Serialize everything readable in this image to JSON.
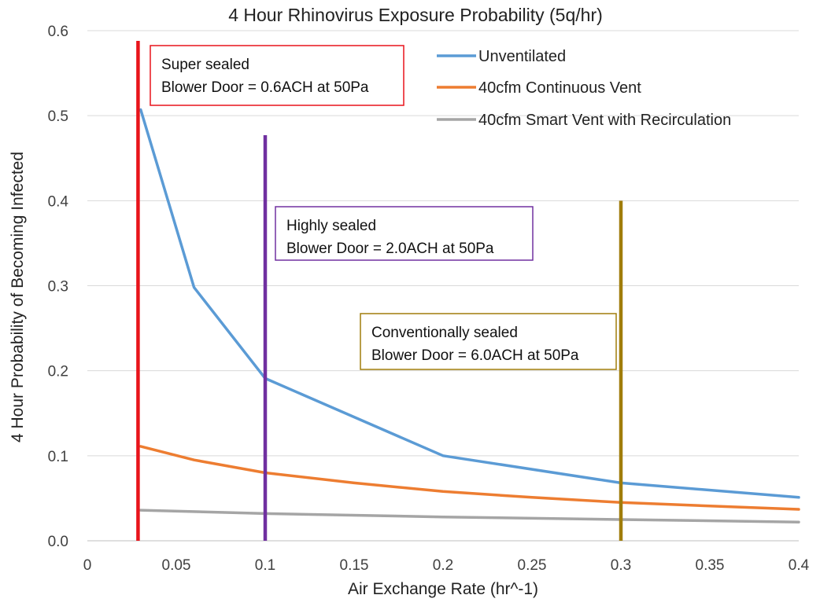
{
  "chart_data": {
    "type": "line",
    "title": "4 Hour Rhinovirus Exposure Probability (5q/hr)",
    "xlabel": "Air Exchange Rate (hr^-1)",
    "ylabel": "4 Hour Probability of Becoming Infected",
    "xlim": [
      0,
      0.4
    ],
    "ylim": [
      0,
      0.6
    ],
    "x_ticks": [
      0,
      0.05,
      0.1,
      0.15,
      0.2,
      0.25,
      0.3,
      0.35,
      0.4
    ],
    "x_tick_labels": [
      "0",
      "0.05",
      "0.1",
      "0.15",
      "0.2",
      "0.25",
      "0.3",
      "0.35",
      "0.4"
    ],
    "y_ticks": [
      0,
      0.1,
      0.2,
      0.3,
      0.4,
      0.5,
      0.6
    ],
    "y_tick_labels": [
      "0.0",
      "0.1",
      "0.2",
      "0.3",
      "0.4",
      "0.5",
      "0.6"
    ],
    "grid": "horizontal",
    "legend_position": "top-right",
    "series": [
      {
        "name": "Unventilated",
        "color": "#5b9bd5",
        "x": [
          0.03,
          0.06,
          0.1,
          0.2,
          0.3,
          0.4
        ],
        "y": [
          0.507,
          0.298,
          0.191,
          0.1,
          0.068,
          0.051
        ]
      },
      {
        "name": "40cfm Continuous Vent",
        "color": "#ed7d31",
        "x": [
          0.03,
          0.06,
          0.1,
          0.15,
          0.2,
          0.25,
          0.3,
          0.35,
          0.4
        ],
        "y": [
          0.111,
          0.095,
          0.08,
          0.068,
          0.058,
          0.051,
          0.045,
          0.041,
          0.037
        ]
      },
      {
        "name": "40cfm Smart Vent with Recirculation",
        "color": "#a5a5a5",
        "x": [
          0.03,
          0.1,
          0.2,
          0.3,
          0.4
        ],
        "y": [
          0.036,
          0.032,
          0.028,
          0.025,
          0.022
        ]
      }
    ],
    "reference_lines": [
      {
        "x": 0.0285,
        "y_top": 0.588,
        "color": "#e8141b",
        "label_lines": [
          "Super sealed",
          "Blower Door = 0.6ACH at 50Pa"
        ]
      },
      {
        "x": 0.1,
        "y_top": 0.477,
        "color": "#7030a0",
        "label_lines": [
          "Highly sealed",
          "Blower Door = 2.0ACH at 50Pa"
        ]
      },
      {
        "x": 0.3,
        "y_top": 0.4,
        "color": "#a07d0b",
        "label_lines": [
          "Conventionally sealed",
          "Blower Door = 6.0ACH at 50Pa"
        ]
      }
    ]
  }
}
